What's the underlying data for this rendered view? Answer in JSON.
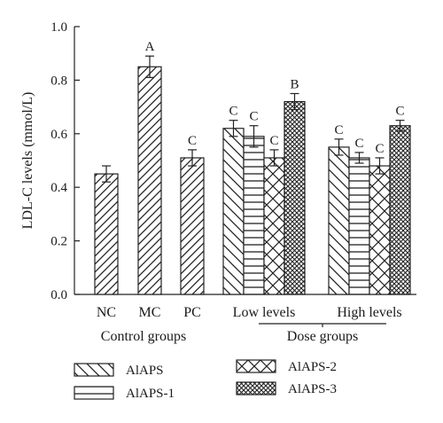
{
  "chart_data": {
    "type": "bar",
    "ylabel": "LDL-C levels (mmol/L)",
    "ylim": [
      0.0,
      1.0
    ],
    "yticks": [
      "0.0",
      "0.2",
      "0.4",
      "0.6",
      "0.8",
      "1.0"
    ],
    "groups": [
      {
        "label": "Control groups",
        "categories": [
          {
            "label": "NC",
            "bars": [
              {
                "pattern": "diag",
                "value": 0.45,
                "error": 0.03,
                "sig": ""
              }
            ]
          },
          {
            "label": "MC",
            "bars": [
              {
                "pattern": "diag",
                "value": 0.85,
                "error": 0.04,
                "sig": "A"
              }
            ]
          },
          {
            "label": "PC",
            "bars": [
              {
                "pattern": "diag",
                "value": 0.51,
                "error": 0.03,
                "sig": "C"
              }
            ]
          }
        ]
      },
      {
        "label": "Dose groups",
        "categories": [
          {
            "label": "Low levels",
            "bars": [
              {
                "pattern": "back",
                "value": 0.62,
                "error": 0.03,
                "sig": "C"
              },
              {
                "pattern": "horiz",
                "value": 0.59,
                "error": 0.04,
                "sig": "C"
              },
              {
                "pattern": "cross",
                "value": 0.51,
                "error": 0.03,
                "sig": "C"
              },
              {
                "pattern": "dense",
                "value": 0.72,
                "error": 0.03,
                "sig": "B"
              }
            ]
          },
          {
            "label": "High levels",
            "bars": [
              {
                "pattern": "back",
                "value": 0.55,
                "error": 0.03,
                "sig": "C"
              },
              {
                "pattern": "horiz",
                "value": 0.51,
                "error": 0.02,
                "sig": "C"
              },
              {
                "pattern": "cross",
                "value": 0.48,
                "error": 0.03,
                "sig": "C"
              },
              {
                "pattern": "dense",
                "value": 0.63,
                "error": 0.02,
                "sig": "C"
              }
            ]
          }
        ]
      }
    ],
    "legend": [
      {
        "label": "AlAPS",
        "pattern": "back"
      },
      {
        "label": "AlAPS-1",
        "pattern": "horiz"
      },
      {
        "label": "AlAPS-2",
        "pattern": "cross"
      },
      {
        "label": "AlAPS-3",
        "pattern": "dense"
      }
    ]
  }
}
